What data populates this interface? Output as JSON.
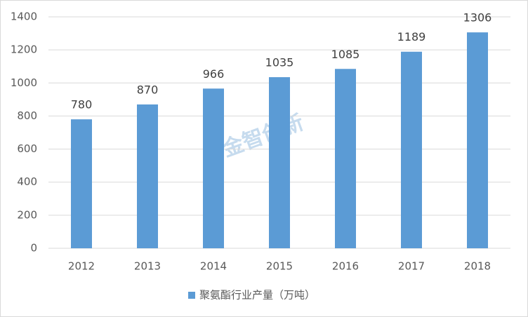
{
  "chart_data": {
    "type": "bar",
    "categories": [
      "2012",
      "2013",
      "2014",
      "2015",
      "2016",
      "2017",
      "2018"
    ],
    "series": [
      {
        "name": "聚氨酯行业产量（万吨）",
        "color": "#5b9bd5",
        "values": [
          780,
          870,
          966,
          1035,
          1085,
          1189,
          1306
        ]
      }
    ],
    "ylim": [
      0,
      1400
    ],
    "yticks": [
      0,
      200,
      400,
      600,
      800,
      1000,
      1200,
      1400
    ],
    "grid": true,
    "legend": "bottom",
    "data_labels": true,
    "watermark": "金智创新"
  }
}
